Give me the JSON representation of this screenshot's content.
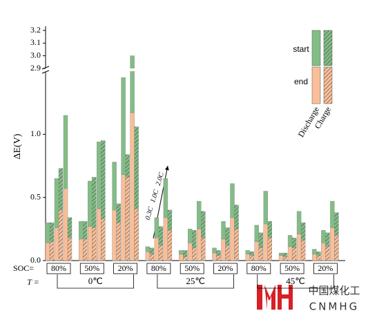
{
  "chart_data": {
    "type": "bar",
    "y_label": "ΔE(V)",
    "ylim": [
      0,
      3.2
    ],
    "ybreak": [
      1.5,
      2.9
    ],
    "yticks": [
      {
        "value": 0,
        "label": "0.0"
      },
      0.5,
      {
        "value": 1,
        "label": "1.0"
      },
      2.9,
      {
        "value": 3,
        "label": "3.0"
      },
      3.1,
      3.2
    ],
    "rates": [
      "0.3C",
      "1.0C",
      "2.0C"
    ],
    "soc_prefix": "SOC=",
    "soc": [
      "80%",
      "50%",
      "20%",
      "80%",
      "50%",
      "20%",
      "80%",
      "50%",
      "20%"
    ],
    "temp_prefix": "T =",
    "temps": [
      "0℃",
      "25℃",
      "45℃"
    ],
    "segments": [
      {
        "name": "end",
        "color": "#f9bf98"
      },
      {
        "name": "start",
        "color": "#82bd86"
      }
    ],
    "series": [
      {
        "name": "Discharge",
        "hatch": false,
        "end": [
          [
            0.14,
            0.26,
            0.57
          ],
          [
            0.17,
            0.27,
            0.41
          ],
          [
            0.4,
            0.68,
            1.17
          ],
          [
            0.07,
            0.18,
            0.34
          ],
          [
            0.05,
            0.14,
            0.25
          ],
          [
            0.06,
            0.17,
            0.34
          ],
          [
            0.05,
            0.15,
            0.29
          ],
          [
            0.04,
            0.11,
            0.21
          ],
          [
            0.05,
            0.14,
            0.26
          ]
        ],
        "rise": [
          [
            0.16,
            0.39,
            0.58
          ],
          [
            0.14,
            0.36,
            0.53
          ],
          [
            0.38,
            0.77,
            1.83
          ],
          [
            0.04,
            0.16,
            0.31
          ],
          [
            0.03,
            0.11,
            0.22
          ],
          [
            0.04,
            0.14,
            0.27
          ],
          [
            0.03,
            0.13,
            0.26
          ],
          [
            0.02,
            0.09,
            0.18
          ],
          [
            0.04,
            0.1,
            0.21
          ]
        ]
      },
      {
        "name": "Charge",
        "hatch": true,
        "end": [
          [
            0.15,
            0.4,
            0.18
          ],
          [
            0.17,
            0.26,
            0.33
          ],
          [
            0.3,
            0.66,
            0.41
          ],
          [
            0.05,
            0.12,
            0.24
          ],
          [
            0.03,
            0.1,
            0.18
          ],
          [
            0.04,
            0.12,
            0.25
          ],
          [
            0.04,
            0.1,
            0.18
          ],
          [
            0.03,
            0.1,
            0.16
          ],
          [
            0.04,
            0.11,
            0.2
          ]
        ],
        "rise": [
          [
            0.15,
            0.33,
            0.16
          ],
          [
            0.14,
            0.4,
            0.62
          ],
          [
            0.15,
            0.18,
            0.65
          ],
          [
            0.05,
            0.15,
            0.16
          ],
          [
            0.05,
            0.14,
            0.21
          ],
          [
            0.04,
            0.14,
            0.19
          ],
          [
            0.03,
            0.12,
            0.13
          ],
          [
            0.03,
            0.08,
            0.14
          ],
          [
            0.03,
            0.11,
            0.18
          ]
        ]
      }
    ]
  },
  "watermark": {
    "cn": "中国煤化工",
    "en": "CNMHG"
  }
}
